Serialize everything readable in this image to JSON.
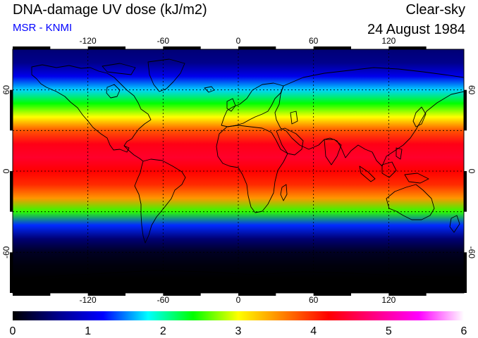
{
  "header": {
    "title": "DNA-damage UV dose (kJ/m2)",
    "source": "MSR - KNMI",
    "condition": "Clear-sky",
    "date": "24 August 1984"
  },
  "map": {
    "projection": "equirectangular",
    "lon_range": [
      -180,
      180
    ],
    "lat_range": [
      -90,
      90
    ],
    "gridlines": "dotted",
    "lon_ticks": [
      -120,
      -60,
      0,
      60,
      120
    ],
    "lat_ticks": [
      60,
      0,
      -60
    ],
    "lon_tick_labels": [
      "-120",
      "-60",
      "0",
      "60",
      "120"
    ],
    "lat_tick_labels": [
      "60",
      "0",
      "-60"
    ],
    "frame_ticks_alternating": true
  },
  "colorbar": {
    "min": 0,
    "max": 6,
    "labels": [
      "0",
      "1",
      "2",
      "3",
      "4",
      "5",
      "6"
    ],
    "colors": [
      "#000000",
      "#00008b",
      "#0000ff",
      "#00ffff",
      "#00ff00",
      "#ffff00",
      "#ff8000",
      "#ff0000",
      "#ff0080",
      "#ff00ff",
      "#ffffff"
    ]
  },
  "dose_profile": {
    "latitudes": [
      -90,
      -80,
      -70,
      -60,
      -50,
      -40,
      -30,
      -20,
      -10,
      0,
      10,
      20,
      30,
      40,
      50,
      60,
      70,
      80,
      90
    ],
    "values": [
      0,
      0,
      0.05,
      0.15,
      0.5,
      1.3,
      2.5,
      3.5,
      4.0,
      4.2,
      4.4,
      4.3,
      3.8,
      3.0,
      2.4,
      1.7,
      1.1,
      0.6,
      0.5
    ]
  }
}
